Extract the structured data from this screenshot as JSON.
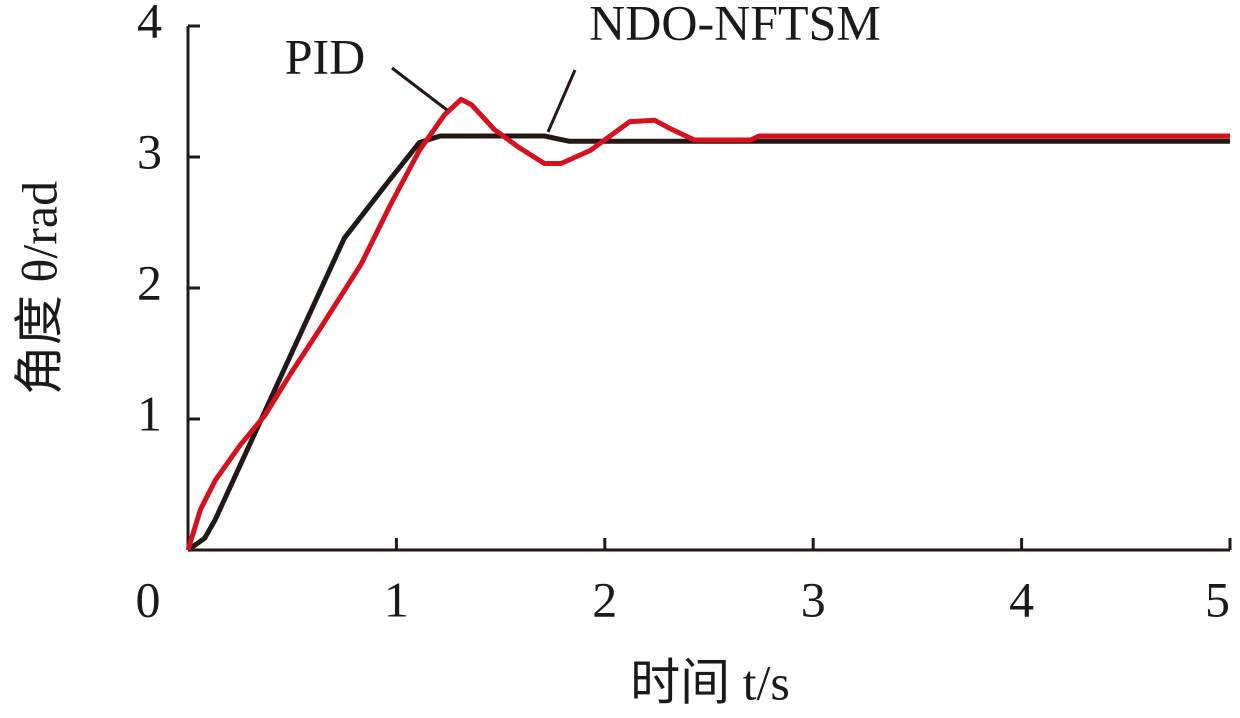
{
  "chart_data": {
    "type": "line",
    "xlabel": "时间 t/s",
    "ylabel": "角度 θ/rad",
    "xlim": [
      0,
      5
    ],
    "ylim": [
      0,
      4
    ],
    "xticks": [
      0,
      1,
      2,
      3,
      4,
      5
    ],
    "yticks": [
      1,
      2,
      3,
      4
    ],
    "series": [
      {
        "name": "NDO-NFTSM",
        "color": "#231815",
        "x": [
          0,
          0.08,
          0.13,
          0.75,
          0.95,
          1.11,
          1.21,
          1.71,
          1.83,
          5
        ],
        "values": [
          0,
          0.09,
          0.23,
          2.38,
          2.79,
          3.11,
          3.16,
          3.16,
          3.12,
          3.12
        ]
      },
      {
        "name": "PID",
        "color": "#d7101e",
        "x": [
          0,
          0.06,
          0.13,
          0.25,
          0.37,
          0.49,
          0.63,
          0.83,
          0.97,
          1.11,
          1.23,
          1.31,
          1.36,
          1.47,
          1.59,
          1.71,
          1.79,
          1.93,
          2.12,
          2.24,
          2.31,
          2.43,
          2.7,
          2.74,
          5
        ],
        "values": [
          0,
          0.31,
          0.53,
          0.8,
          1.03,
          1.34,
          1.68,
          2.18,
          2.63,
          3.05,
          3.32,
          3.44,
          3.4,
          3.21,
          3.07,
          2.95,
          2.95,
          3.05,
          3.27,
          3.28,
          3.22,
          3.13,
          3.13,
          3.16,
          3.16
        ]
      }
    ]
  }
}
